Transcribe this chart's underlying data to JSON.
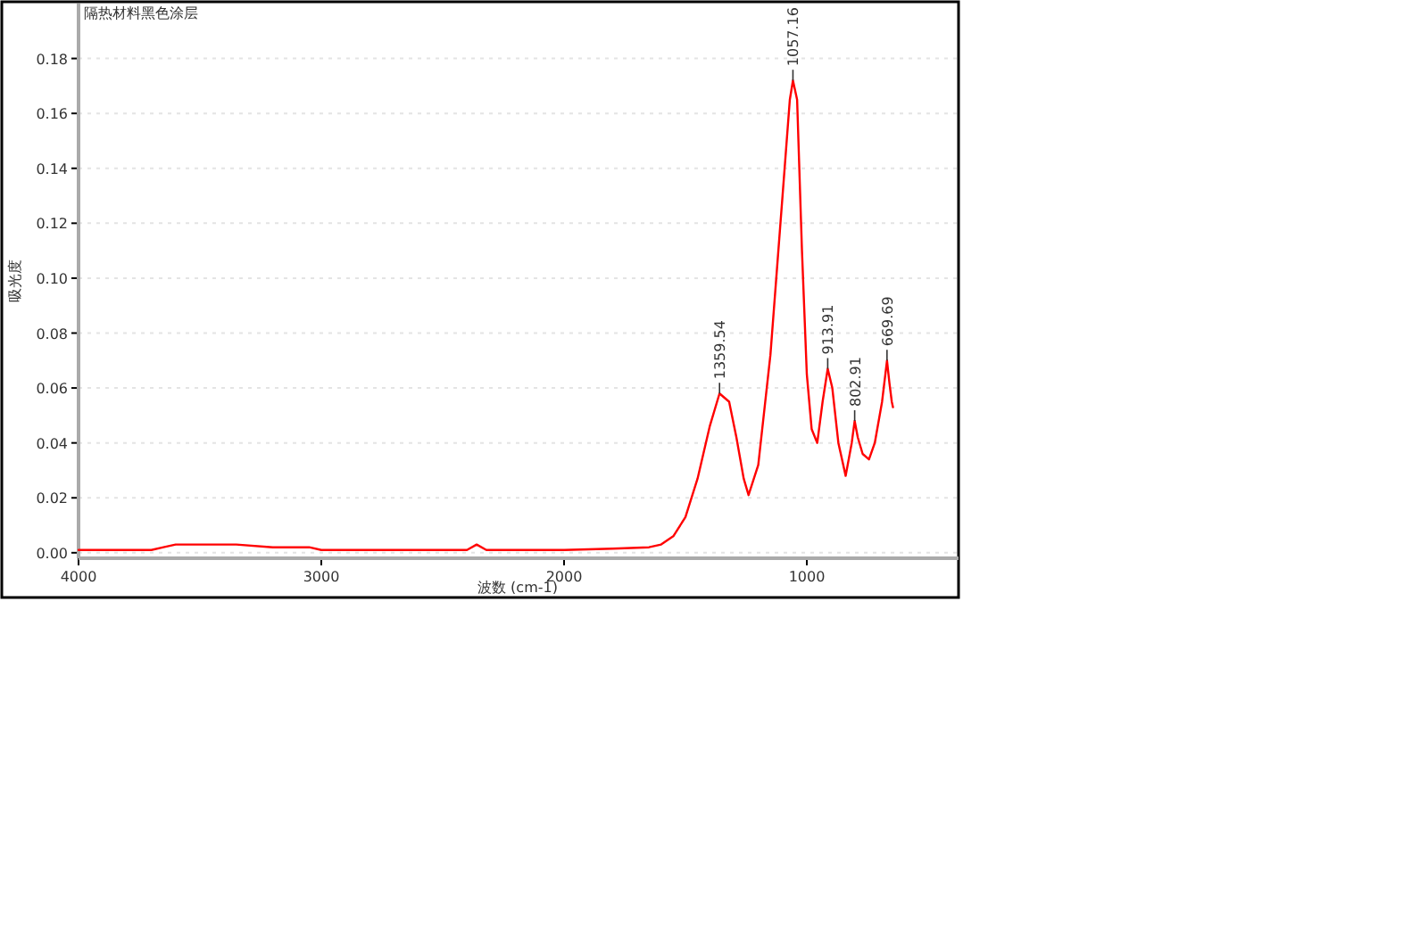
{
  "chart_data": {
    "type": "line",
    "title": "隔热材料黑色涂层",
    "xlabel": "波数 (cm-1)",
    "ylabel": "吸光度",
    "xlim": [
      4000,
      375
    ],
    "ylim": [
      -0.002,
      0.2
    ],
    "xticks": [
      4000,
      3000,
      2000,
      1000
    ],
    "yticks": [
      {
        "value": 0,
        "label": "0.00"
      },
      {
        "value": 0.02,
        "label": "0.02"
      },
      {
        "value": 0.04,
        "label": "0.04"
      },
      {
        "value": 0.06,
        "label": "0.06"
      },
      {
        "value": 0.08,
        "label": "0.08"
      },
      {
        "value": 0.1,
        "label": "0.10"
      },
      {
        "value": 0.12,
        "label": "0.12"
      },
      {
        "value": 0.14,
        "label": "0.14"
      },
      {
        "value": 0.16,
        "label": "0.16"
      },
      {
        "value": 0.18,
        "label": "0.18"
      }
    ],
    "grid": "y",
    "marker": "none",
    "line_style": "solid",
    "series": [
      {
        "color": "#ff0000",
        "x": [
          4000,
          3700,
          3650,
          3600,
          3500,
          3350,
          3200,
          3050,
          3000,
          2950,
          2700,
          2400,
          2360,
          2320,
          2200,
          2000,
          1800,
          1650,
          1600,
          1550,
          1500,
          1450,
          1400,
          1359.54,
          1320,
          1290,
          1260,
          1240,
          1200,
          1150,
          1100,
          1070,
          1057.16,
          1040,
          1020,
          1000,
          980,
          957,
          935,
          913.91,
          895,
          870,
          840,
          815,
          802.91,
          790,
          770,
          744,
          720,
          690,
          669.69,
          660,
          650,
          645
        ],
        "values": [
          0.001,
          0.001,
          0.002,
          0.003,
          0.003,
          0.003,
          0.002,
          0.002,
          0.001,
          0.001,
          0.001,
          0.001,
          0.003,
          0.001,
          0.001,
          0.001,
          0.0015,
          0.002,
          0.003,
          0.006,
          0.013,
          0.027,
          0.046,
          0.058,
          0.055,
          0.042,
          0.027,
          0.021,
          0.032,
          0.072,
          0.13,
          0.165,
          0.172,
          0.165,
          0.11,
          0.065,
          0.045,
          0.04,
          0.055,
          0.067,
          0.06,
          0.04,
          0.028,
          0.04,
          0.048,
          0.042,
          0.036,
          0.034,
          0.04,
          0.055,
          0.07,
          0.062,
          0.055,
          0.053
        ]
      }
    ],
    "annotations": [
      {
        "text": "1359.54",
        "x": 1359.54,
        "y": 0.058
      },
      {
        "text": "1057.16",
        "x": 1057.16,
        "y": 0.172
      },
      {
        "text": "913.91",
        "x": 913.91,
        "y": 0.067
      },
      {
        "text": "802.91",
        "x": 802.91,
        "y": 0.048
      },
      {
        "text": "669.69",
        "x": 669.69,
        "y": 0.07
      }
    ]
  }
}
